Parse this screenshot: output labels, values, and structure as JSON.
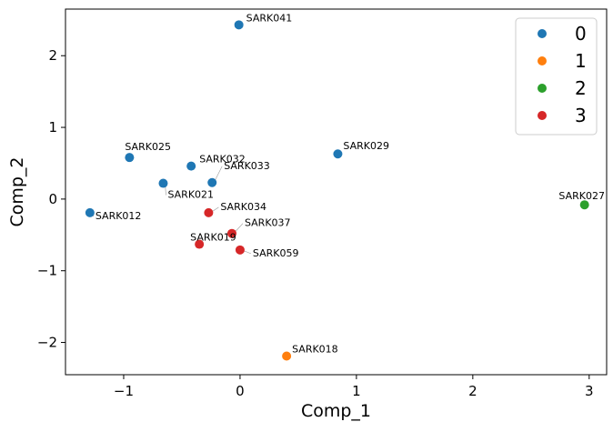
{
  "chart_data": {
    "type": "scatter",
    "xlabel": "Comp_1",
    "ylabel": "Comp_2",
    "xlim": [
      -1.5,
      3.15
    ],
    "ylim": [
      -2.45,
      2.65
    ],
    "xticks": [
      -1,
      0,
      1,
      2,
      3
    ],
    "yticks": [
      -2,
      -1,
      0,
      1,
      2
    ],
    "tick_labels_x": [
      "−1",
      "0",
      "1",
      "2",
      "3"
    ],
    "tick_labels_y": [
      "−2",
      "−1",
      "0",
      "1",
      "2"
    ],
    "legend_position": "top-right",
    "series": [
      {
        "name": "0",
        "color": "#1f77b4"
      },
      {
        "name": "1",
        "color": "#ff7f0e"
      },
      {
        "name": "2",
        "color": "#2ca02c"
      },
      {
        "name": "3",
        "color": "#d62728"
      }
    ],
    "points": [
      {
        "label": "SARK041",
        "x": -0.01,
        "y": 2.43,
        "group": "0"
      },
      {
        "label": "SARK025",
        "x": -0.95,
        "y": 0.58,
        "group": "0"
      },
      {
        "label": "SARK032",
        "x": -0.42,
        "y": 0.46,
        "group": "0"
      },
      {
        "label": "SARK029",
        "x": 0.84,
        "y": 0.63,
        "group": "0"
      },
      {
        "label": "SARK033",
        "x": -0.24,
        "y": 0.23,
        "group": "0"
      },
      {
        "label": "SARK021",
        "x": -0.66,
        "y": 0.22,
        "group": "0"
      },
      {
        "label": "SARK012",
        "x": -1.29,
        "y": -0.19,
        "group": "0"
      },
      {
        "label": "SARK034",
        "x": -0.27,
        "y": -0.19,
        "group": "3"
      },
      {
        "label": "SARK037",
        "x": -0.07,
        "y": -0.48,
        "group": "3"
      },
      {
        "label": "SARK019",
        "x": -0.35,
        "y": -0.63,
        "group": "3"
      },
      {
        "label": "SARK059",
        "x": 0.0,
        "y": -0.71,
        "group": "3"
      },
      {
        "label": "SARK027",
        "x": 2.96,
        "y": -0.08,
        "group": "2"
      },
      {
        "label": "SARK018",
        "x": 0.4,
        "y": -2.19,
        "group": "1"
      }
    ]
  }
}
